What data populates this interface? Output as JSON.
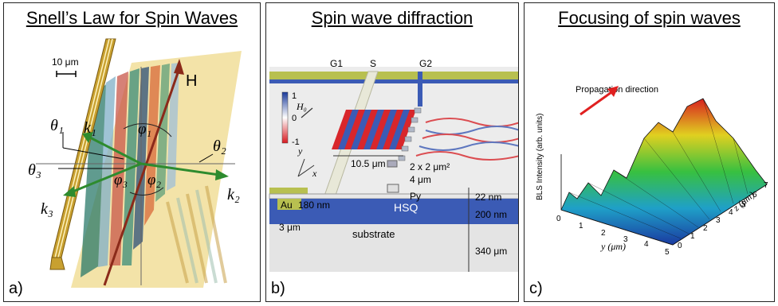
{
  "panels": [
    {
      "title": "Snell’s Law for Spin Waves",
      "label": "a)",
      "scale_label": "10 μm",
      "field_label": "H",
      "angles": {
        "theta1": "θ₁",
        "theta2": "θ₂",
        "theta3": "θ₃",
        "phi1": "φ₁",
        "phi2": "φ₂",
        "phi3": "φ₃"
      },
      "wavevectors": {
        "k1": "k₁",
        "k2": "k₂",
        "k3": "k₃"
      }
    },
    {
      "title": "Spin wave diffraction",
      "label": "b)",
      "labels": {
        "g1": "G1",
        "s": "S",
        "g2": "G2",
        "h0": "H₀",
        "y": "y",
        "x": "x",
        "cb_top": "1",
        "cb_mid": "0",
        "cb_bot": "-1",
        "width": "10.5 μm",
        "patch": "2 x 2 μm²",
        "gap": "4 μm",
        "py": "Py",
        "au": "Au",
        "au_thick": "180 nm",
        "hsq": "HSQ",
        "t22": "22 nm",
        "t200": "200 nm",
        "t340": "340 μm",
        "au_width": "3 μm",
        "substrate": "substrate"
      }
    },
    {
      "title": "Focusing of spin waves",
      "label": "c)",
      "annotation": "Propagation\ndirection",
      "zlabel": "BLS Intensity (arb. units)",
      "ylabel": "y (μm)",
      "xlabel": "z (μm)",
      "y_ticks": [
        "0",
        "1",
        "2",
        "3",
        "4",
        "5"
      ],
      "z_ticks": [
        "0",
        "1",
        "2",
        "3",
        "4",
        "5",
        "6",
        "7"
      ]
    }
  ],
  "colors": {
    "border": "#222222",
    "gold": "#c8a030",
    "blue": "#3b5bb5",
    "red": "#d8262b",
    "green": "#2e8b2e",
    "brown": "#8b2a1a",
    "arrow_red": "#e02020"
  }
}
